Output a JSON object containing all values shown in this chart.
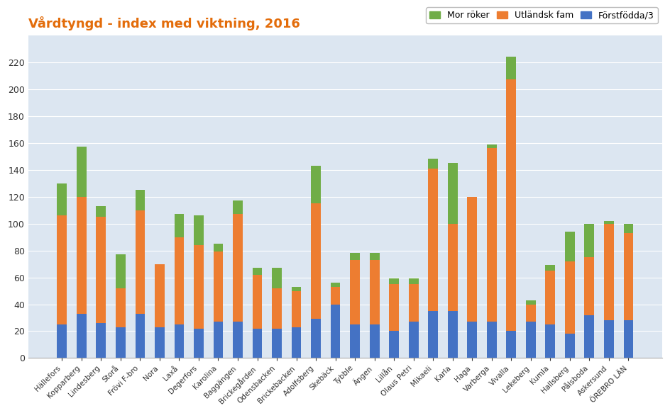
{
  "title": "Vårdtyngd - index med viktning, 2016",
  "categories": [
    "Hällefors",
    "Kopparberg",
    "Lindesberg",
    "Storå",
    "Frövi F-bro",
    "Nora",
    "Laxå",
    "Degerfors",
    "Karolina",
    "Baggängen",
    "Brickegården",
    "Odensbacken",
    "Brickebacken",
    "Adolfsberg",
    "Skebäck",
    "Tybble",
    "Ängen",
    "Lillån",
    "Olaus Petri",
    "Mikaeli",
    "Karla",
    "Haga",
    "Varberga",
    "Vivalla",
    "Lekeberg",
    "Kumla",
    "Hallsberg",
    "Pålsboda",
    "Askersund",
    "ÖREBRO LÄN"
  ],
  "forstfodda": [
    25,
    33,
    26,
    23,
    33,
    23,
    25,
    22,
    27,
    27,
    22,
    22,
    23,
    29,
    40,
    25,
    25,
    20,
    27,
    35,
    35,
    27,
    27,
    20,
    27,
    25,
    18,
    32,
    28,
    28
  ],
  "utlandsk": [
    81,
    87,
    79,
    29,
    77,
    47,
    65,
    62,
    52,
    80,
    40,
    30,
    27,
    86,
    13,
    48,
    48,
    35,
    28,
    106,
    65,
    93,
    129,
    187,
    13,
    40,
    54,
    43,
    72,
    65
  ],
  "mor_roker": [
    24,
    37,
    8,
    25,
    15,
    0,
    17,
    22,
    6,
    10,
    5,
    15,
    3,
    28,
    3,
    5,
    5,
    4,
    4,
    7,
    45,
    0,
    3,
    17,
    3,
    4,
    22,
    25,
    2,
    7
  ],
  "colors": {
    "forstfodda": "#4472C4",
    "utlandsk": "#ED7D31",
    "mor_roker": "#70AD47"
  },
  "title_color": "#E36C0A",
  "legend_labels": [
    "Mor röker",
    "Utländsk fam",
    "Förstfödda/3"
  ],
  "ylim": [
    0,
    240
  ],
  "yticks": [
    0,
    20,
    40,
    60,
    80,
    100,
    120,
    140,
    160,
    180,
    200,
    220
  ],
  "plot_bg_color": "#DCE6F1",
  "background_color": "#FFFFFF",
  "grid_color": "#FFFFFF"
}
